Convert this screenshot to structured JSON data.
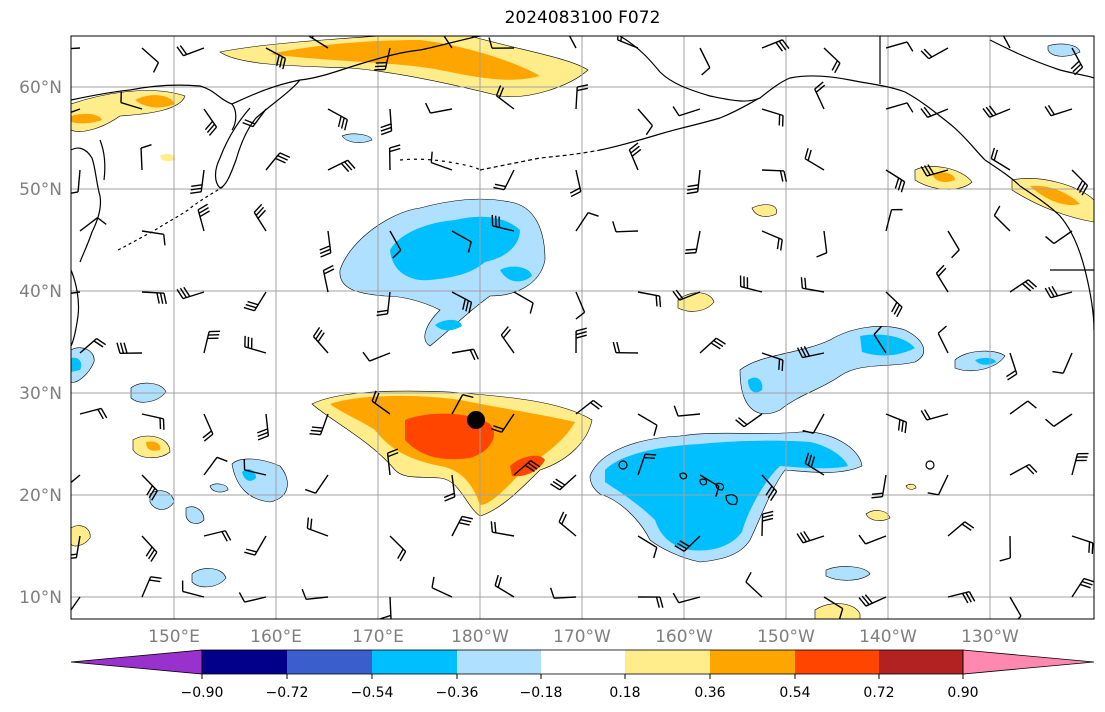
{
  "title": "2024083100 F072",
  "axes": {
    "lat_labels": [
      "10°N",
      "20°N",
      "30°N",
      "40°N",
      "50°N",
      "60°N"
    ],
    "lon_labels": [
      "150°E",
      "160°E",
      "170°E",
      "180°W",
      "170°W",
      "160°W",
      "150°W",
      "140°W",
      "130°W"
    ]
  },
  "colorbar": {
    "tick_labels": [
      "−0.90",
      "−0.72",
      "−0.54",
      "−0.36",
      "−0.18",
      "0.18",
      "0.36",
      "0.54",
      "0.72",
      "0.90"
    ],
    "colors": {
      "under": "#9932cc",
      "n090_n072": "#00008b",
      "n072_n054": "#3a5fcd",
      "n054_n036": "#00bfff",
      "n036_n018": "#b0e0ff",
      "n018_p018": "#ffffff",
      "p018_p036": "#ffec8b",
      "p036_p054": "#ffa500",
      "p054_p072": "#ff4500",
      "p072_p090": "#b22222",
      "over": "#ff88b0"
    }
  },
  "colors": {
    "grid": "#a0a0a0",
    "coast": "#000000",
    "marker": "#000000"
  }
}
